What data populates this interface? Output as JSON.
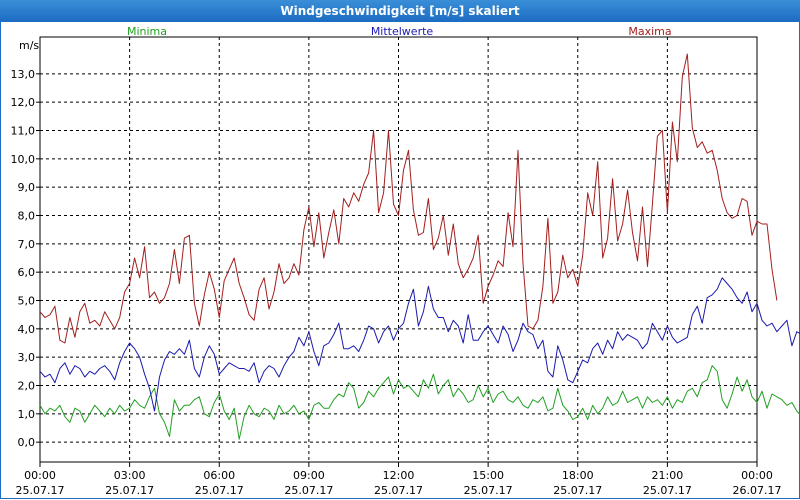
{
  "window": {
    "title": "Windgeschwindigkeit [m/s] skaliert"
  },
  "chart_data": {
    "type": "line",
    "title": "Windgeschwindigkeit [m/s] skaliert",
    "ylabel": "m/s",
    "ylim": [
      -0.7,
      14.3
    ],
    "xlim": [
      0,
      24
    ],
    "grid": true,
    "y_ticks": [
      "0,0",
      "1,0",
      "2,0",
      "3,0",
      "4,0",
      "5,0",
      "6,0",
      "7,0",
      "8,0",
      "9,0",
      "10,0",
      "11,0",
      "12,0",
      "13,0"
    ],
    "y_tick_values": [
      0,
      1,
      2,
      3,
      4,
      5,
      6,
      7,
      8,
      9,
      10,
      11,
      12,
      13
    ],
    "x_ticks": [
      {
        "time": "00:00",
        "date": "25.07.17",
        "hour": 0
      },
      {
        "time": "03:00",
        "date": "25.07.17",
        "hour": 3
      },
      {
        "time": "06:00",
        "date": "25.07.17",
        "hour": 6
      },
      {
        "time": "09:00",
        "date": "25.07.17",
        "hour": 9
      },
      {
        "time": "12:00",
        "date": "25.07.17",
        "hour": 12
      },
      {
        "time": "15:00",
        "date": "25.07.17",
        "hour": 15
      },
      {
        "time": "18:00",
        "date": "25.07.17",
        "hour": 18
      },
      {
        "time": "21:00",
        "date": "25.07.17",
        "hour": 21
      },
      {
        "time": "00:00",
        "date": "26.07.17",
        "hour": 24
      }
    ],
    "x_step_hours": 0.16667,
    "series": [
      {
        "name": "Minima",
        "color": "#22a022",
        "values": [
          1.3,
          1.0,
          1.2,
          1.1,
          1.3,
          0.9,
          0.7,
          1.2,
          1.1,
          0.7,
          1.0,
          1.3,
          1.1,
          0.9,
          1.2,
          1.0,
          1.3,
          1.1,
          1.2,
          1.5,
          1.3,
          1.2,
          1.6,
          1.9,
          1.0,
          0.7,
          0.2,
          1.5,
          1.1,
          1.3,
          1.3,
          1.5,
          1.6,
          1.0,
          0.9,
          1.4,
          1.7,
          1.1,
          0.8,
          1.2,
          0.1,
          0.9,
          1.3,
          1.0,
          0.9,
          1.2,
          1.1,
          0.8,
          1.3,
          1.0,
          1.1,
          1.3,
          1.0,
          1.1,
          0.8,
          1.3,
          1.4,
          1.2,
          1.2,
          1.5,
          1.7,
          1.6,
          2.1,
          1.9,
          1.2,
          1.4,
          1.8,
          1.6,
          1.9,
          2.1,
          2.3,
          1.7,
          2.2,
          1.9,
          2.0,
          1.8,
          1.6,
          2.2,
          1.9,
          2.4,
          1.7,
          2.0,
          2.2,
          1.6,
          1.9,
          1.7,
          1.4,
          1.5,
          2.0,
          1.6,
          1.9,
          1.4,
          1.7,
          1.8,
          1.5,
          1.4,
          1.6,
          1.3,
          1.2,
          1.5,
          1.4,
          1.6,
          1.1,
          1.2,
          1.9,
          1.3,
          1.1,
          0.8,
          0.9,
          1.2,
          0.8,
          1.3,
          1.0,
          1.2,
          1.6,
          1.3,
          1.4,
          1.8,
          1.4,
          1.5,
          1.6,
          1.2,
          1.6,
          1.4,
          1.5,
          1.3,
          1.6,
          1.2,
          1.5,
          1.4,
          1.8,
          1.9,
          1.6,
          2.1,
          2.2,
          2.7,
          2.5,
          1.5,
          1.2,
          1.7,
          2.3,
          1.8,
          2.2,
          1.6,
          1.4,
          1.8,
          1.2,
          1.7,
          1.6,
          1.5,
          1.3,
          1.4,
          1.1,
          0.9
        ]
      },
      {
        "name": "Mittelwerte",
        "color": "#1a1ab0",
        "values": [
          2.5,
          2.3,
          2.4,
          2.1,
          2.6,
          2.8,
          2.4,
          2.7,
          2.6,
          2.3,
          2.5,
          2.4,
          2.6,
          2.7,
          2.5,
          2.2,
          2.8,
          3.2,
          3.5,
          3.3,
          3.0,
          2.4,
          1.9,
          1.1,
          2.3,
          2.9,
          3.2,
          3.1,
          3.3,
          3.1,
          3.6,
          2.6,
          2.3,
          3.0,
          3.4,
          3.1,
          2.4,
          2.6,
          2.8,
          2.7,
          2.6,
          2.6,
          2.5,
          2.8,
          2.1,
          2.5,
          2.7,
          2.6,
          2.3,
          2.7,
          3.0,
          3.2,
          3.7,
          3.4,
          3.9,
          3.2,
          2.7,
          3.4,
          3.5,
          3.8,
          4.2,
          3.3,
          3.3,
          3.4,
          3.2,
          3.6,
          4.1,
          4.0,
          3.5,
          3.9,
          4.1,
          3.6,
          4.0,
          4.2,
          4.9,
          5.4,
          4.1,
          4.6,
          5.5,
          4.7,
          4.4,
          4.4,
          3.9,
          4.3,
          4.1,
          3.5,
          4.5,
          3.6,
          3.6,
          3.9,
          4.1,
          3.8,
          3.5,
          4.1,
          3.8,
          3.2,
          3.6,
          4.2,
          3.9,
          3.8,
          3.3,
          3.6,
          2.5,
          2.3,
          3.4,
          2.9,
          2.2,
          2.1,
          2.5,
          2.9,
          2.8,
          3.3,
          3.5,
          3.1,
          3.6,
          3.3,
          3.9,
          3.6,
          3.8,
          3.7,
          3.6,
          3.3,
          3.5,
          4.2,
          3.9,
          3.6,
          4.1,
          3.7,
          3.5,
          3.6,
          3.7,
          4.5,
          4.8,
          4.2,
          5.1,
          5.2,
          5.4,
          5.8,
          5.6,
          5.4,
          5.1,
          4.9,
          5.3,
          4.6,
          4.9,
          4.3,
          4.1,
          4.2,
          3.9,
          4.1,
          4.3,
          3.4,
          3.9,
          3.8,
          3.7,
          3.0,
          2.8
        ]
      },
      {
        "name": "Maxima",
        "color": "#a31e1e",
        "values": [
          4.6,
          4.4,
          4.5,
          4.8,
          3.6,
          3.5,
          4.4,
          3.7,
          4.6,
          4.9,
          4.2,
          4.3,
          4.1,
          4.6,
          4.3,
          4.0,
          4.4,
          5.3,
          5.6,
          6.5,
          5.8,
          6.9,
          5.1,
          5.3,
          4.9,
          5.1,
          5.6,
          6.8,
          5.6,
          7.2,
          7.3,
          4.9,
          4.1,
          5.2,
          6.0,
          5.4,
          4.4,
          5.7,
          6.1,
          6.5,
          5.6,
          5.1,
          4.5,
          4.3,
          5.4,
          5.8,
          4.7,
          5.3,
          6.3,
          5.6,
          5.8,
          6.3,
          5.9,
          7.5,
          8.3,
          6.9,
          8.1,
          6.5,
          7.4,
          8.2,
          7.0,
          8.6,
          8.3,
          8.8,
          8.5,
          9.1,
          9.5,
          11.0,
          8.1,
          8.8,
          11.0,
          8.4,
          8.0,
          9.6,
          10.3,
          8.2,
          7.3,
          7.4,
          8.6,
          6.8,
          7.2,
          8.0,
          6.6,
          7.7,
          6.3,
          5.8,
          6.1,
          6.5,
          7.3,
          4.9,
          5.5,
          5.9,
          6.4,
          6.2,
          8.1,
          6.9,
          10.3,
          6.3,
          4.1,
          4.0,
          4.3,
          5.5,
          7.9,
          4.9,
          5.3,
          6.6,
          5.8,
          6.1,
          5.5,
          6.6,
          8.8,
          8.0,
          9.9,
          6.5,
          7.2,
          9.3,
          7.1,
          7.7,
          8.9,
          7.4,
          6.4,
          8.3,
          6.2,
          8.4,
          10.8,
          11.0,
          8.1,
          11.3,
          9.9,
          12.9,
          13.7,
          11.1,
          10.4,
          10.6,
          10.2,
          10.3,
          9.6,
          8.6,
          8.1,
          7.9,
          8.0,
          8.6,
          8.5,
          7.3,
          7.8,
          7.7,
          7.7,
          6.1,
          5.0
        ]
      }
    ]
  }
}
